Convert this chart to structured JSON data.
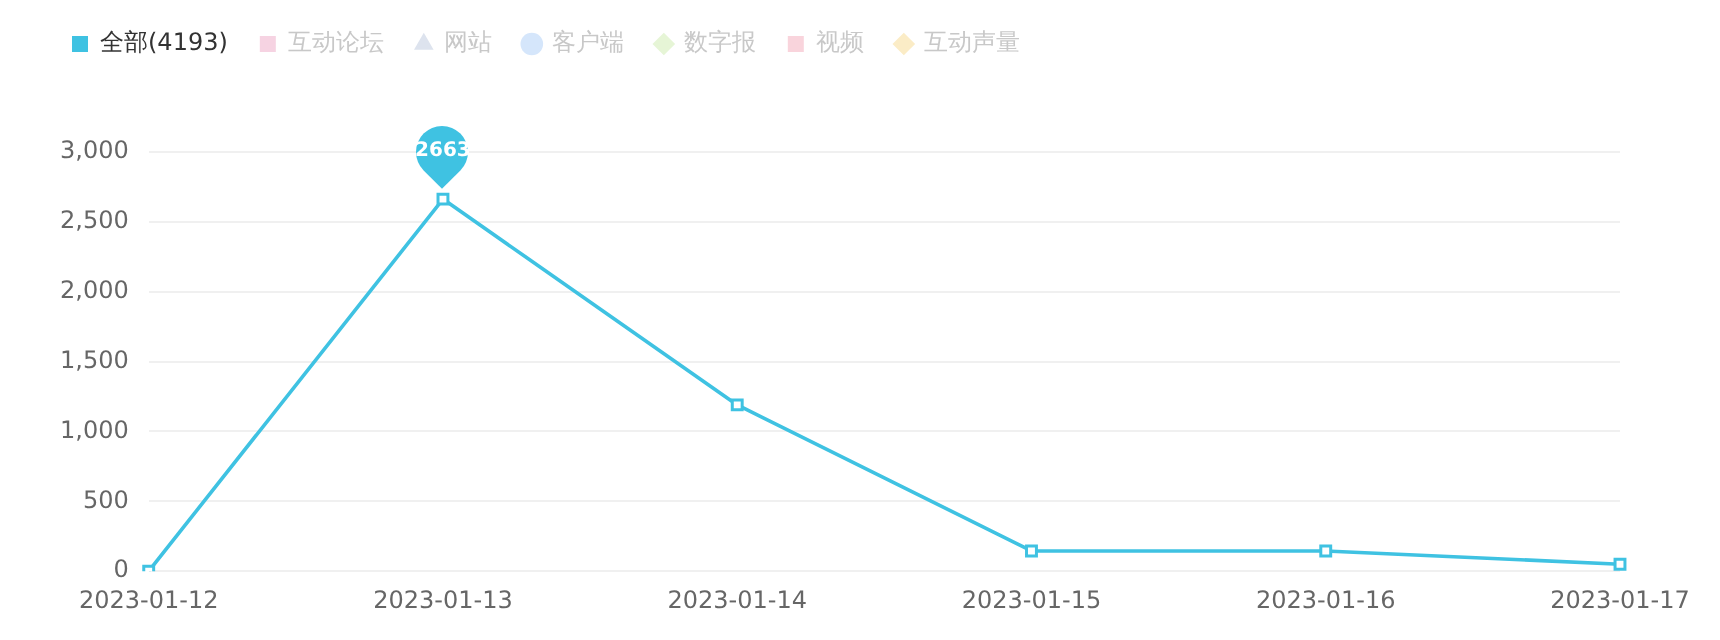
{
  "chart_data": {
    "type": "line",
    "categories": [
      "2023-01-12",
      "2023-01-13",
      "2023-01-14",
      "2023-01-15",
      "2023-01-16",
      "2023-01-17"
    ],
    "series": [
      {
        "name": "全部(4193)",
        "color": "#3fc2e2",
        "marker": "square",
        "values": [
          0,
          2663,
          1190,
          145,
          145,
          50
        ]
      },
      {
        "name": "互动论坛",
        "color": "#f6d3e2",
        "marker": "square",
        "values": [
          null,
          null,
          null,
          null,
          null,
          null
        ]
      },
      {
        "name": "网站",
        "color": "#dde3ee",
        "marker": "triangle",
        "values": [
          null,
          null,
          null,
          null,
          null,
          null
        ]
      },
      {
        "name": "客户端",
        "color": "#d5e6fb",
        "marker": "circle",
        "values": [
          null,
          null,
          null,
          null,
          null,
          null
        ]
      },
      {
        "name": "数字报",
        "color": "#e6f5d6",
        "marker": "diamond",
        "values": [
          null,
          null,
          null,
          null,
          null,
          null
        ]
      },
      {
        "name": "视频",
        "color": "#f9d4dc",
        "marker": "square",
        "values": [
          null,
          null,
          null,
          null,
          null,
          null
        ]
      },
      {
        "name": "互动声量",
        "color": "#fbecc6",
        "marker": "diamond",
        "values": [
          null,
          null,
          null,
          null,
          null,
          null
        ]
      }
    ],
    "ylim": [
      0,
      3000
    ],
    "yticks": [
      {
        "value": 0,
        "label": "0"
      },
      {
        "value": 500,
        "label": "500"
      },
      {
        "value": 1000,
        "label": "1,000"
      },
      {
        "value": 1500,
        "label": "1,500"
      },
      {
        "value": 2000,
        "label": "2,000"
      },
      {
        "value": 2500,
        "label": "2,500"
      },
      {
        "value": 3000,
        "label": "3,000"
      }
    ],
    "grid": "y",
    "legend": "top left",
    "annotations": [
      {
        "text": "2663",
        "x": "2023-01-13",
        "y": 2663
      }
    ]
  }
}
